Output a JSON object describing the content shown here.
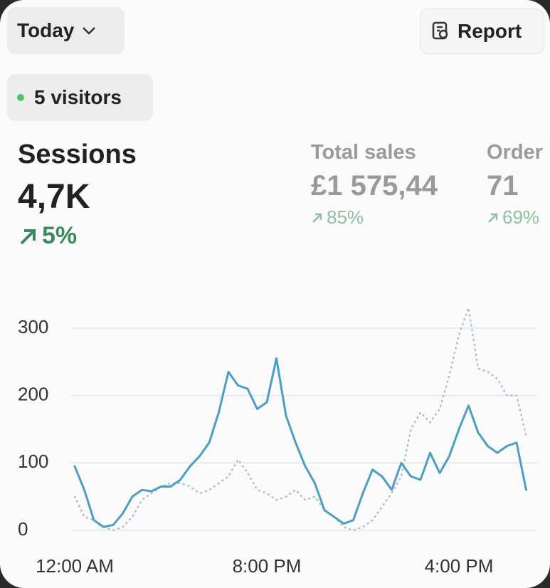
{
  "header": {
    "period": "Today",
    "report": "Report",
    "visitors": "5 visitors"
  },
  "metrics": [
    {
      "label": "Sessions",
      "value": "4,7K",
      "change": "5%"
    },
    {
      "label": "Total sales",
      "value": "£1 575,44",
      "change": "85%"
    },
    {
      "label": "Order",
      "value": "71",
      "change": "69%"
    }
  ],
  "chart_data": {
    "type": "line",
    "categories": [
      "12:00 AM",
      null,
      null,
      null,
      null,
      null,
      null,
      null,
      null,
      null,
      null,
      null,
      null,
      null,
      null,
      null,
      null,
      null,
      null,
      null,
      "8:00 PM",
      null,
      null,
      null,
      null,
      null,
      null,
      null,
      null,
      null,
      null,
      null,
      null,
      null,
      null,
      null,
      null,
      null,
      null,
      null,
      "4:00 PM",
      null,
      null,
      null,
      null,
      null,
      null,
      null
    ],
    "series": [
      {
        "color": "#4a9fc8",
        "style": "solid",
        "values": [
          95,
          60,
          15,
          5,
          8,
          25,
          50,
          60,
          58,
          65,
          65,
          75,
          95,
          110,
          130,
          175,
          235,
          215,
          210,
          180,
          190,
          255,
          170,
          130,
          95,
          70,
          30,
          20,
          10,
          15,
          55,
          90,
          80,
          60,
          100,
          80,
          75,
          115,
          85,
          110,
          150,
          185,
          145,
          125,
          115,
          125,
          130,
          60
        ]
      },
      {
        "color": "#b5bcc4",
        "style": "dotted",
        "values": [
          50,
          20,
          15,
          5,
          0,
          5,
          20,
          45,
          55,
          65,
          70,
          70,
          65,
          55,
          60,
          70,
          80,
          105,
          85,
          60,
          55,
          45,
          50,
          60,
          45,
          50,
          30,
          20,
          5,
          0,
          5,
          15,
          35,
          55,
          80,
          150,
          175,
          160,
          180,
          230,
          290,
          330,
          240,
          235,
          225,
          200,
          200,
          140
        ]
      }
    ],
    "ylim": [
      0,
      340
    ],
    "yticks": [
      0,
      100,
      200,
      300
    ],
    "grid": true
  }
}
